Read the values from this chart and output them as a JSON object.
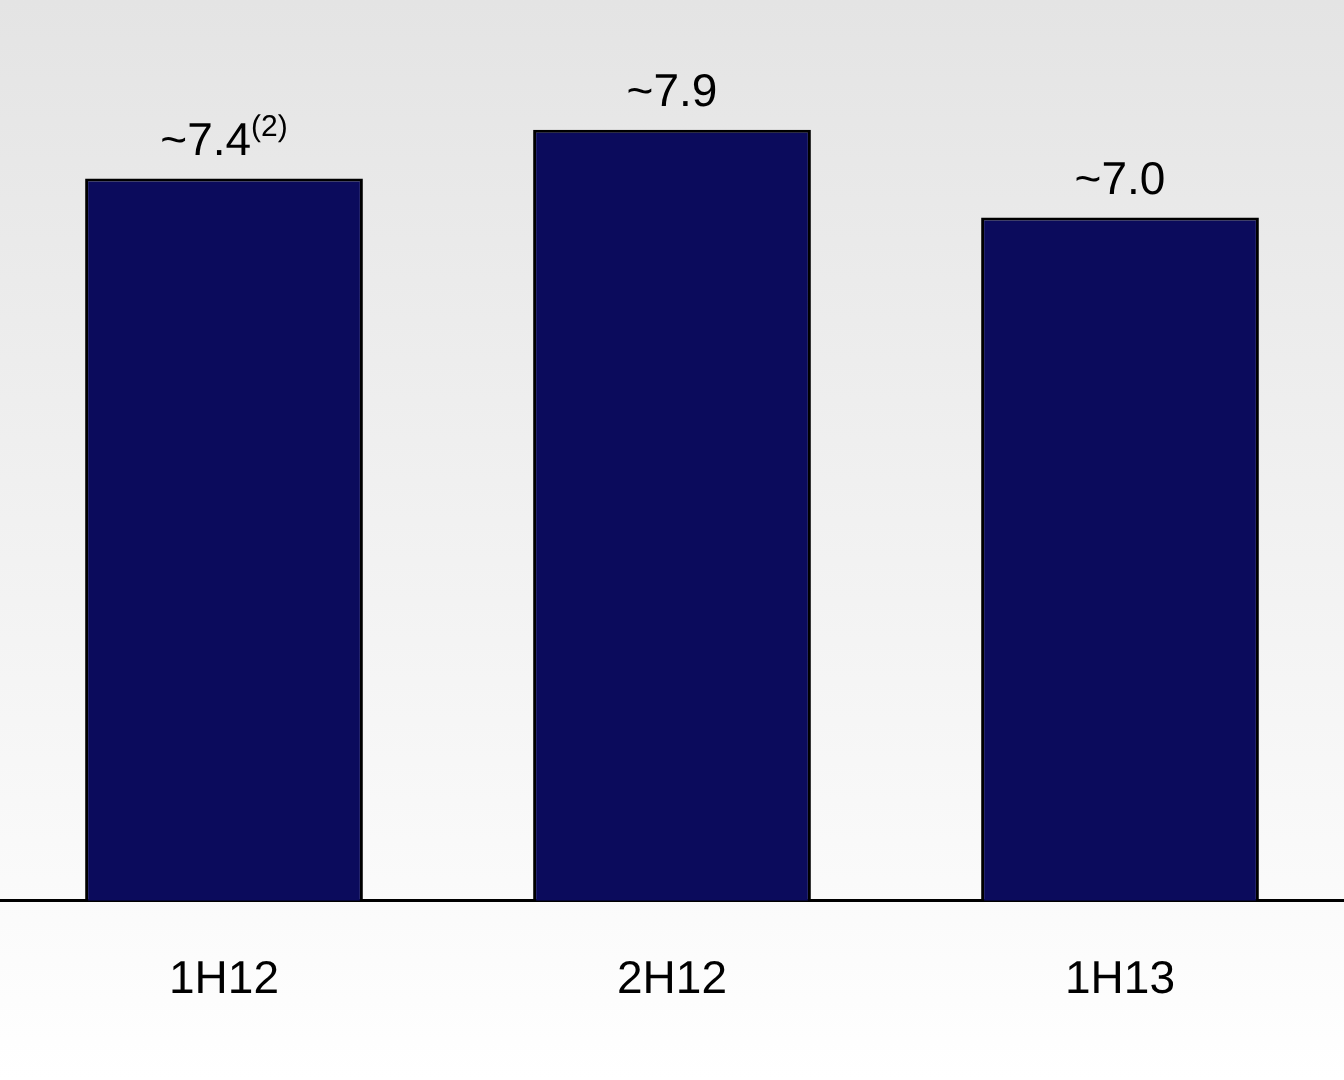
{
  "chart_data": {
    "type": "bar",
    "categories": [
      "1H12",
      "2H12",
      "1H13"
    ],
    "values": [
      7.4,
      7.9,
      7.0
    ],
    "color": "#0b0b5c",
    "value_labels": [
      "~7.4$^{(2)}$",
      "~7.9",
      "~7.0"
    ],
    "grid": false,
    "legend": false
  }
}
